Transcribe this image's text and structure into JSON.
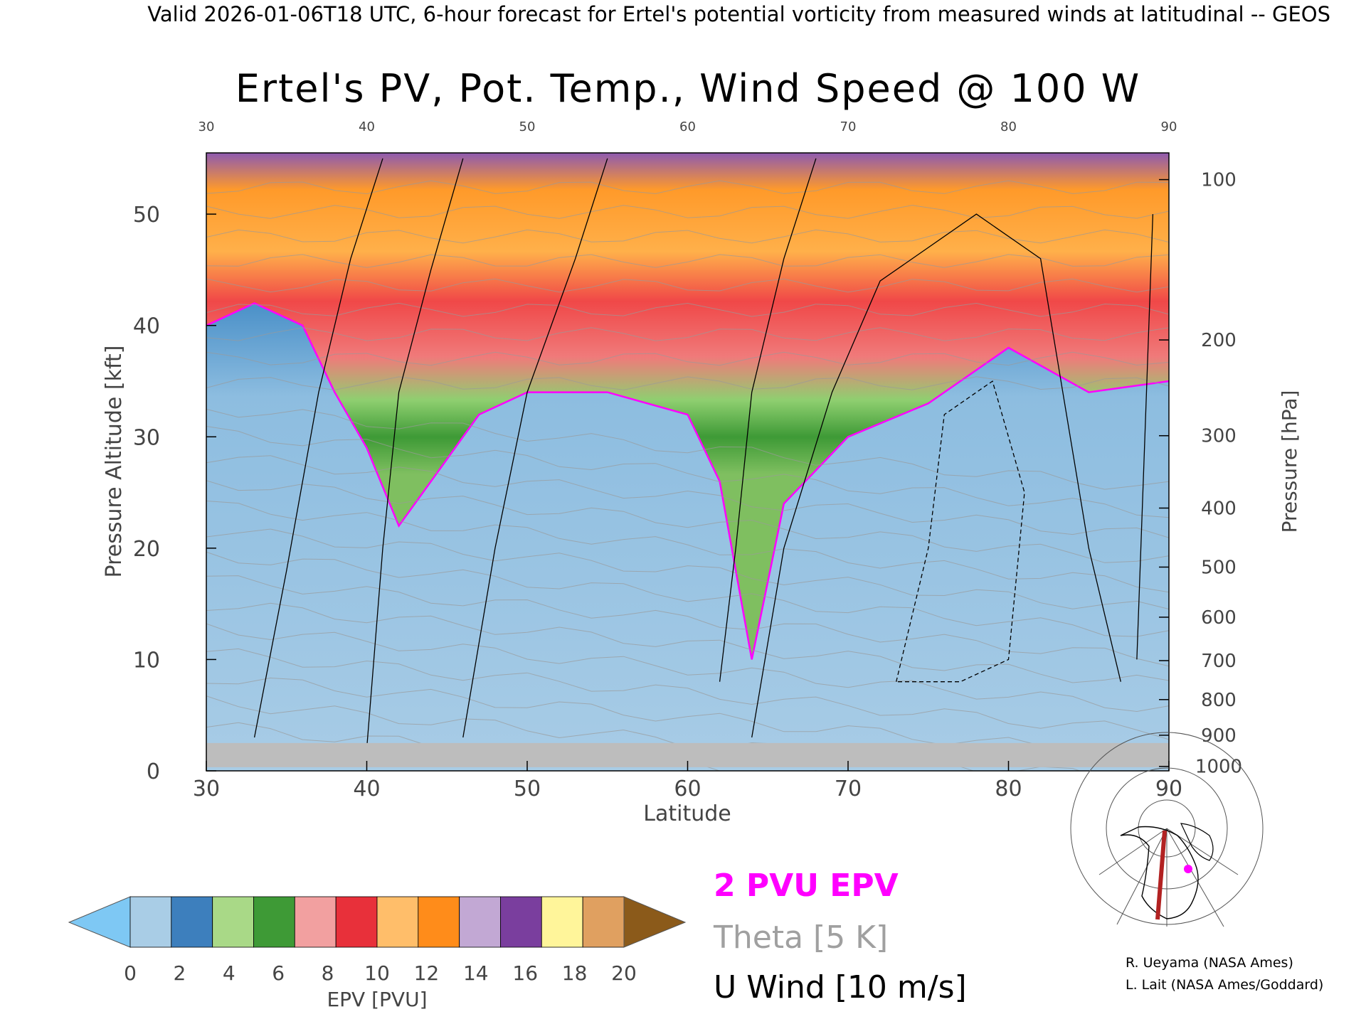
{
  "header": {
    "valid_line": "Valid 2026-01-06T18 UTC, 6-hour forecast for Ertel's potential vorticity from measured winds at latitudinal -- GEOS"
  },
  "chart_data": {
    "type": "heatmap",
    "title": "Ertel's PV, Pot. Temp., Wind Speed @ 100 W",
    "xlabel": "Latitude",
    "ylabel": "Pressure Altitude [kft]",
    "y2label": "Pressure [hPa]",
    "xlim": [
      30,
      90
    ],
    "ylim": [
      0,
      55.5
    ],
    "x_ticks": [
      30,
      40,
      50,
      60,
      70,
      80,
      90
    ],
    "x_ticks_top": [
      30,
      40,
      50,
      60,
      70,
      80,
      90
    ],
    "y_ticks": [
      0,
      10,
      20,
      30,
      40,
      50
    ],
    "pressure_ticks": [
      {
        "hPa": "100",
        "kft": 53.1
      },
      {
        "hPa": "200",
        "kft": 38.7
      },
      {
        "hPa": "300",
        "kft": 30.1
      },
      {
        "hPa": "400",
        "kft": 23.6
      },
      {
        "hPa": "500",
        "kft": 18.3
      },
      {
        "hPa": "600",
        "kft": 13.8
      },
      {
        "hPa": "700",
        "kft": 9.9
      },
      {
        "hPa": "800",
        "kft": 6.4
      },
      {
        "hPa": "900",
        "kft": 3.2
      },
      {
        "hPa": "1000",
        "kft": 0.4
      }
    ],
    "colorbar": {
      "label": "EPV [PVU]",
      "ticks": [
        "0",
        "2",
        "4",
        "6",
        "8",
        "10",
        "12",
        "14",
        "16",
        "18",
        "20"
      ],
      "under_color": "#7ec8f4",
      "over_color": "#8b5a1a",
      "colors": [
        "#a9cde6",
        "#3d7fbd",
        "#a9d987",
        "#3e9a36",
        "#f2a0a0",
        "#e8303a",
        "#ffbe6a",
        "#ff8c1a",
        "#c2a8d4",
        "#7a3e9e",
        "#fff59a",
        "#e0a060"
      ]
    },
    "tropopause_profile": {
      "latitude": [
        30,
        33,
        36,
        38,
        40,
        42,
        43,
        45,
        47,
        50,
        55,
        60,
        62,
        64,
        66,
        70,
        75,
        80,
        85,
        90
      ],
      "kft": [
        40,
        42,
        40,
        34,
        29,
        22,
        24,
        28,
        32,
        34,
        34,
        32,
        26,
        10,
        24,
        30,
        33,
        38,
        34,
        35
      ]
    },
    "surface_kft": 2.5,
    "legend": [
      {
        "label": "2 PVU EPV",
        "color": "#ff00ff"
      },
      {
        "label": "Theta [5 K]",
        "color": "#a0a0a0"
      },
      {
        "label": "U Wind [10 m/s]",
        "color": "#000000"
      }
    ]
  },
  "credits": {
    "line1": "R. Ueyama (NASA Ames)",
    "line2": "L. Lait (NASA Ames/Goddard)"
  },
  "inset_map": {
    "marker_color": "#ff00ff",
    "section_color": "#b22222"
  }
}
